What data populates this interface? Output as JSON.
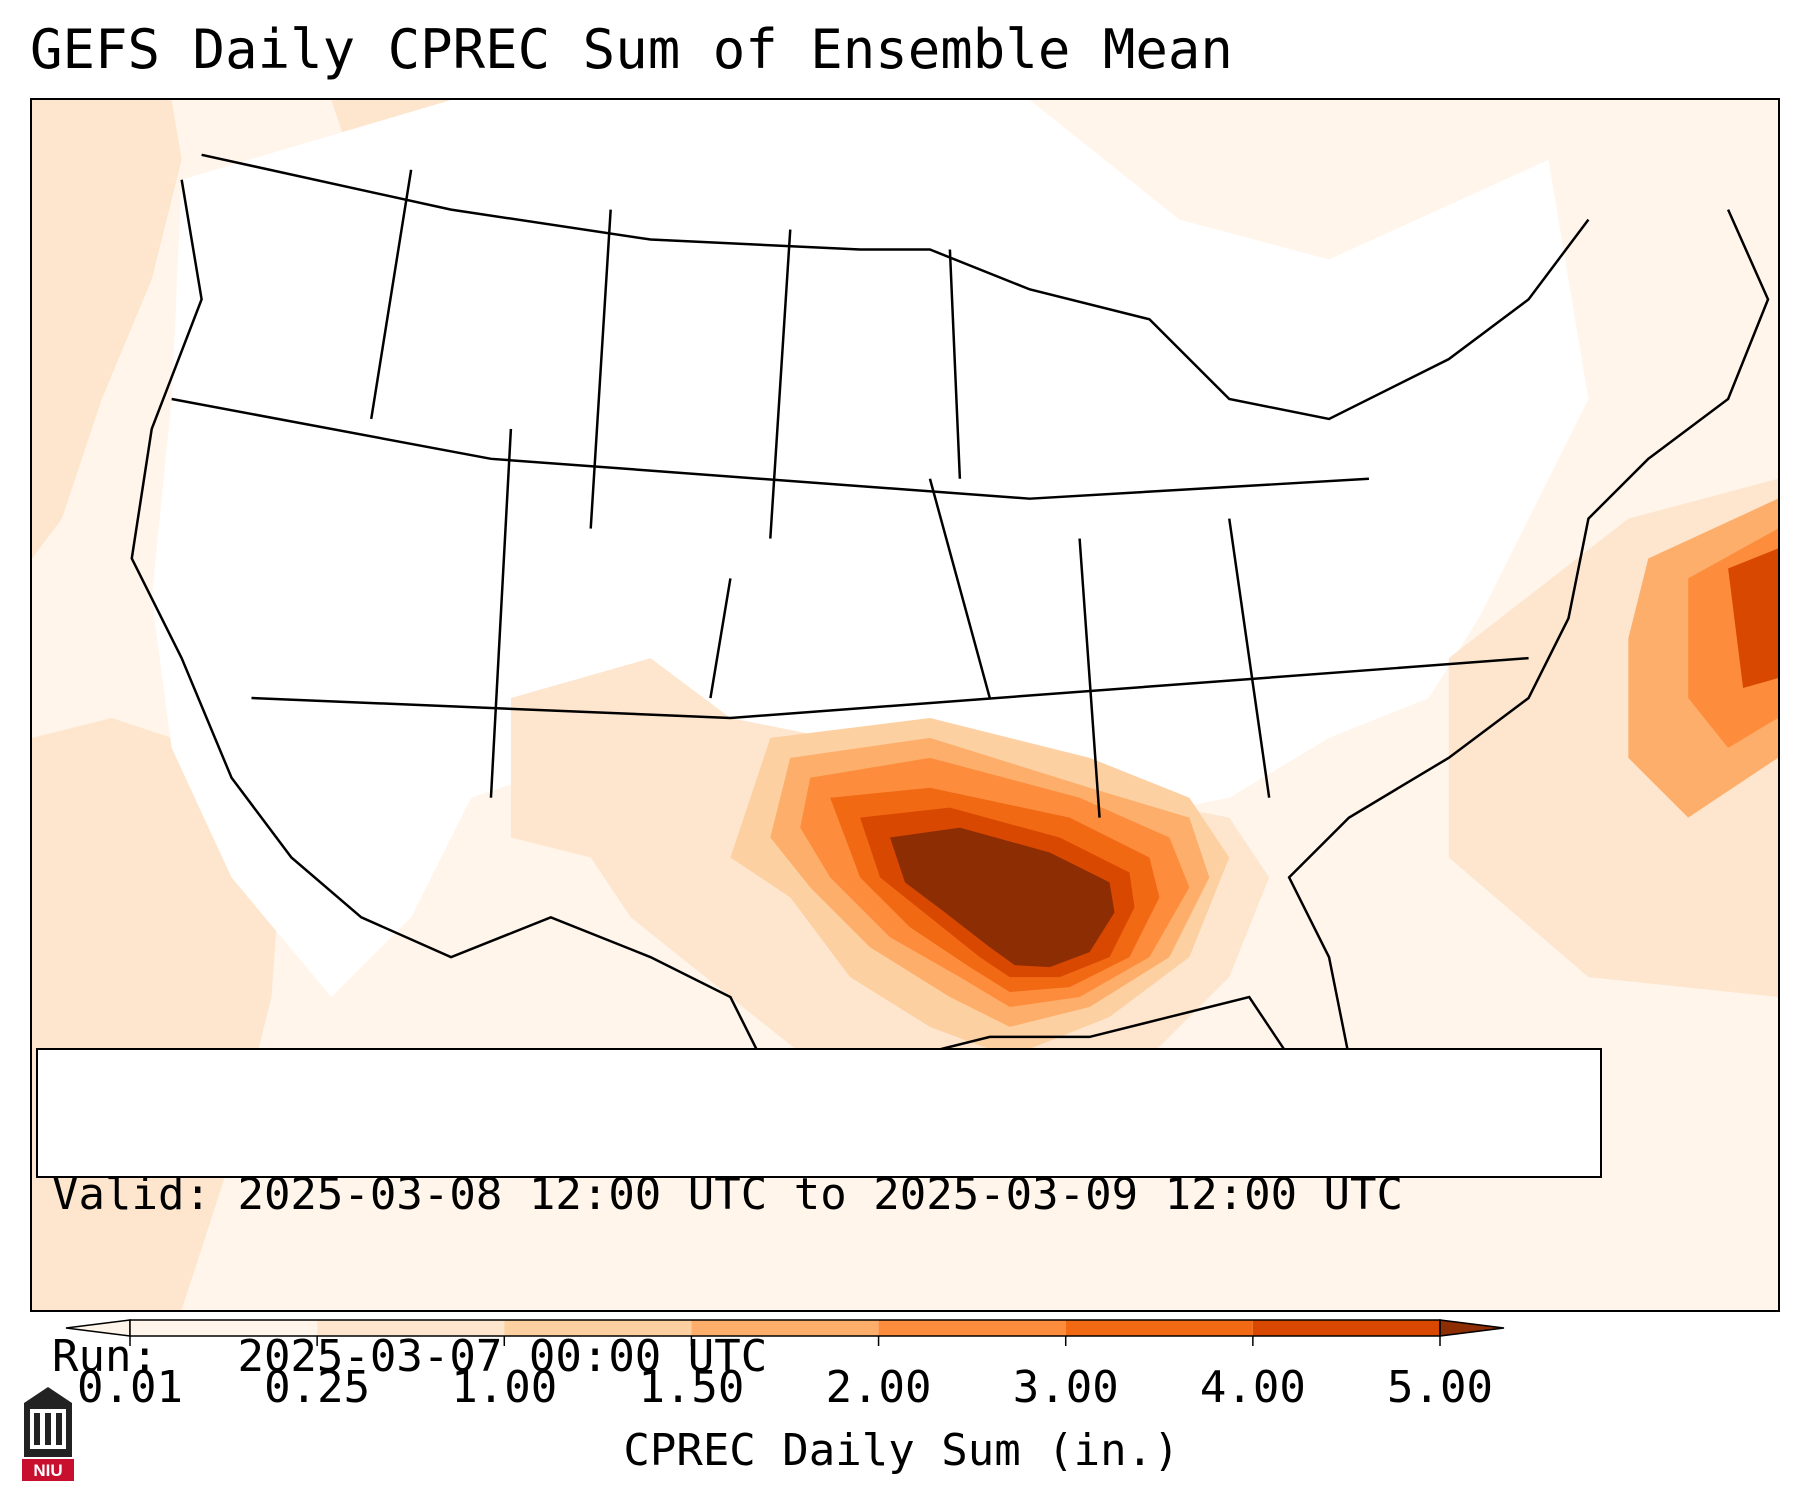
{
  "title": "GEFS Daily CPREC Sum of Ensemble Mean",
  "info": {
    "valid_label": "Valid:",
    "valid_value": "2025-03-08 12:00 UTC to 2025-03-09 12:00 UTC",
    "run_label": "Run:",
    "run_value": "2025-03-07 00:00 UTC"
  },
  "colorbar": {
    "title": "CPREC Daily Sum (in.)",
    "levels": [
      "0.01",
      "0.25",
      "1.00",
      "1.50",
      "2.00",
      "3.00",
      "4.00",
      "5.00"
    ],
    "colors": [
      "#fff5eb",
      "#fee6ce",
      "#fdd0a2",
      "#fdae6b",
      "#fd8d3c",
      "#f16913",
      "#d94801",
      "#8c2d04"
    ],
    "extend": "both"
  },
  "map": {
    "region": "contiguous-united-states",
    "precip_colors": {
      "light": "#fff5eb",
      "low": "#fee6ce",
      "medium": "#fdd0a2",
      "moderate": "#fdae6b",
      "high": "#fd8d3c",
      "heavy": "#f16913",
      "very_heavy": "#d94801",
      "extreme": "#8c2d04"
    }
  },
  "logo": {
    "text": "NIU",
    "color": "#c8102e"
  }
}
